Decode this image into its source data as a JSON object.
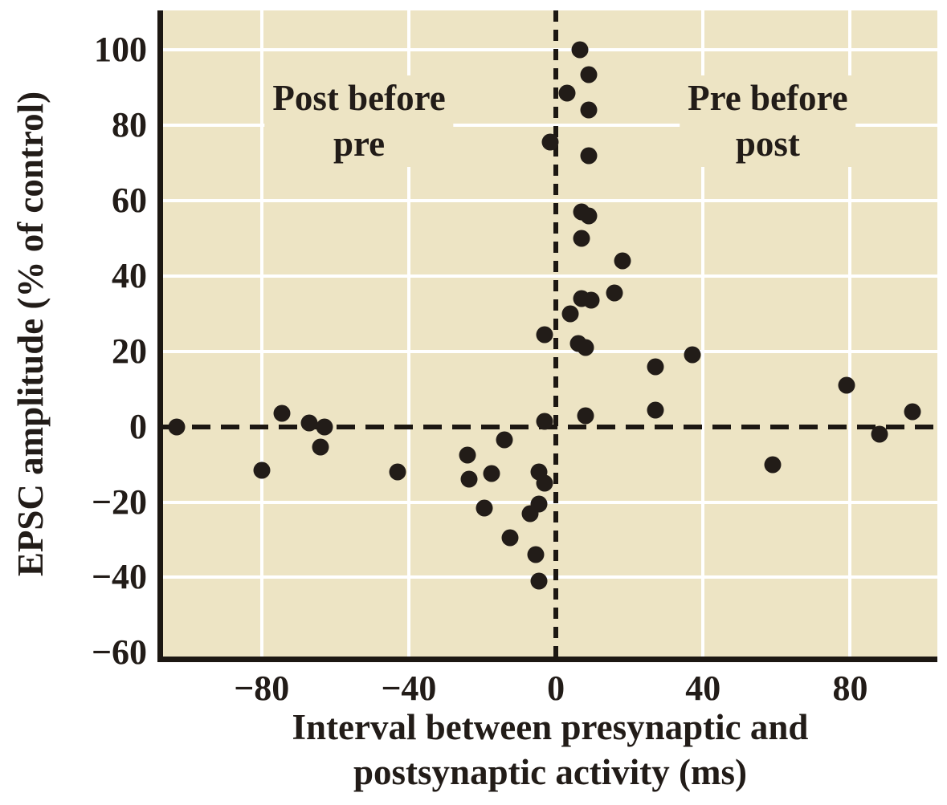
{
  "colors": {
    "plot_background": "#ede4c4",
    "gridline": "#ffffff",
    "axis_and_text": "#1c1712",
    "point": "#221c18",
    "page_background": "#ffffff"
  },
  "chart_data": {
    "type": "scatter",
    "xlabel_line1": "Interval between presynaptic and",
    "xlabel_line2": "postsynaptic activity (ms)",
    "ylabel": "EPSC amplitude (% of control)",
    "xlim": [
      -106.8,
      103.7
    ],
    "ylim": [
      -61,
      110.5
    ],
    "grid": "on",
    "x_ticks": [
      {
        "value": -80,
        "label": "−80"
      },
      {
        "value": -40,
        "label": "−40"
      },
      {
        "value": 0,
        "label": "0"
      },
      {
        "value": 40,
        "label": "40"
      },
      {
        "value": 80,
        "label": "80"
      }
    ],
    "y_ticks": [
      {
        "value": 100,
        "label": "100"
      },
      {
        "value": 80,
        "label": "80"
      },
      {
        "value": 60,
        "label": "60"
      },
      {
        "value": 40,
        "label": "40"
      },
      {
        "value": 20,
        "label": "20"
      },
      {
        "value": 0,
        "label": "0"
      },
      {
        "value": -20,
        "label": "−20"
      },
      {
        "value": -40,
        "label": "−40"
      },
      {
        "value": -60,
        "label": "−60"
      }
    ],
    "x_gridlines": [
      -80,
      -40,
      40,
      80
    ],
    "y_gridlines": [
      100,
      80,
      60,
      40,
      20,
      -20,
      -40
    ],
    "reference_lines": {
      "vertical_x": 0,
      "horizontal_y": 0,
      "style": "dashed"
    },
    "annotations": [
      {
        "name": "post-before-pre-label",
        "lines": [
          "Post before",
          "pre"
        ],
        "x": -53.5,
        "y": 81
      },
      {
        "name": "pre-before-post-label",
        "lines": [
          "Pre before",
          "post"
        ],
        "x": 57.6,
        "y": 81
      }
    ],
    "points": [
      [
        -103,
        0
      ],
      [
        -80,
        -11.5
      ],
      [
        -74.5,
        3.5
      ],
      [
        -67,
        1
      ],
      [
        -64,
        -5.5
      ],
      [
        -63,
        0
      ],
      [
        -43,
        -12
      ],
      [
        -24,
        -7.5
      ],
      [
        -23.5,
        -14
      ],
      [
        -19.5,
        -21.5
      ],
      [
        -17.5,
        -12.5
      ],
      [
        -14,
        -3.5
      ],
      [
        -12.5,
        -29.5
      ],
      [
        -7,
        -23
      ],
      [
        -5.5,
        -34
      ],
      [
        -4.5,
        -12
      ],
      [
        -4.5,
        -20.5
      ],
      [
        -4.5,
        -41
      ],
      [
        -3,
        -15
      ],
      [
        -3,
        1.5
      ],
      [
        -3,
        24.5
      ],
      [
        -1.5,
        75.5
      ],
      [
        3,
        88.5
      ],
      [
        4,
        30
      ],
      [
        6,
        22
      ],
      [
        6.5,
        100
      ],
      [
        7,
        57
      ],
      [
        7,
        50
      ],
      [
        7,
        34
      ],
      [
        8,
        21
      ],
      [
        8,
        3
      ],
      [
        9,
        93.5
      ],
      [
        9,
        84
      ],
      [
        9,
        72
      ],
      [
        9,
        56
      ],
      [
        9.5,
        33.5
      ],
      [
        16,
        35.5
      ],
      [
        18,
        44
      ],
      [
        27,
        16
      ],
      [
        27,
        4.5
      ],
      [
        37,
        19
      ],
      [
        59,
        -10
      ],
      [
        79,
        11
      ],
      [
        88,
        -2
      ],
      [
        97,
        4
      ]
    ]
  }
}
